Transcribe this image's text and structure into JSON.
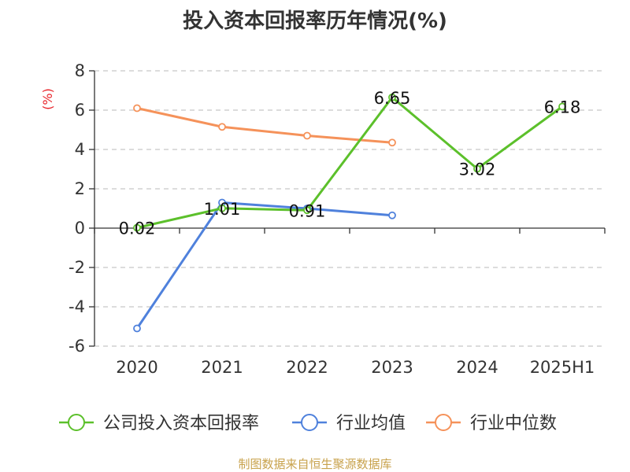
{
  "chart_data": {
    "type": "line",
    "title": "投入资本回报率历年情况(%)",
    "ylabel": "(%)",
    "xlabel": "",
    "categories": [
      "2020",
      "2021",
      "2022",
      "2023",
      "2024",
      "2025H1"
    ],
    "ylim": [
      -6,
      8
    ],
    "yticks": [
      -6,
      -4,
      -2,
      0,
      2,
      4,
      6,
      8
    ],
    "grid": true,
    "legend_position": "bottom",
    "series": [
      {
        "name": "公司投入资本回报率",
        "color": "#5cc02b",
        "values": [
          0.02,
          1.01,
          0.91,
          6.65,
          3.02,
          6.18
        ],
        "data_labels": [
          "0.02",
          "1.01",
          "0.91",
          "6.65",
          "3.02",
          "6.18"
        ]
      },
      {
        "name": "行业均值",
        "color": "#4f81dc",
        "values": [
          -5.1,
          1.3,
          1.0,
          0.65,
          null,
          null
        ]
      },
      {
        "name": "行业中位数",
        "color": "#f5925a",
        "values": [
          6.1,
          5.15,
          4.7,
          4.35,
          null,
          null
        ]
      }
    ]
  },
  "source": "制图数据来自恒生聚源数据库"
}
